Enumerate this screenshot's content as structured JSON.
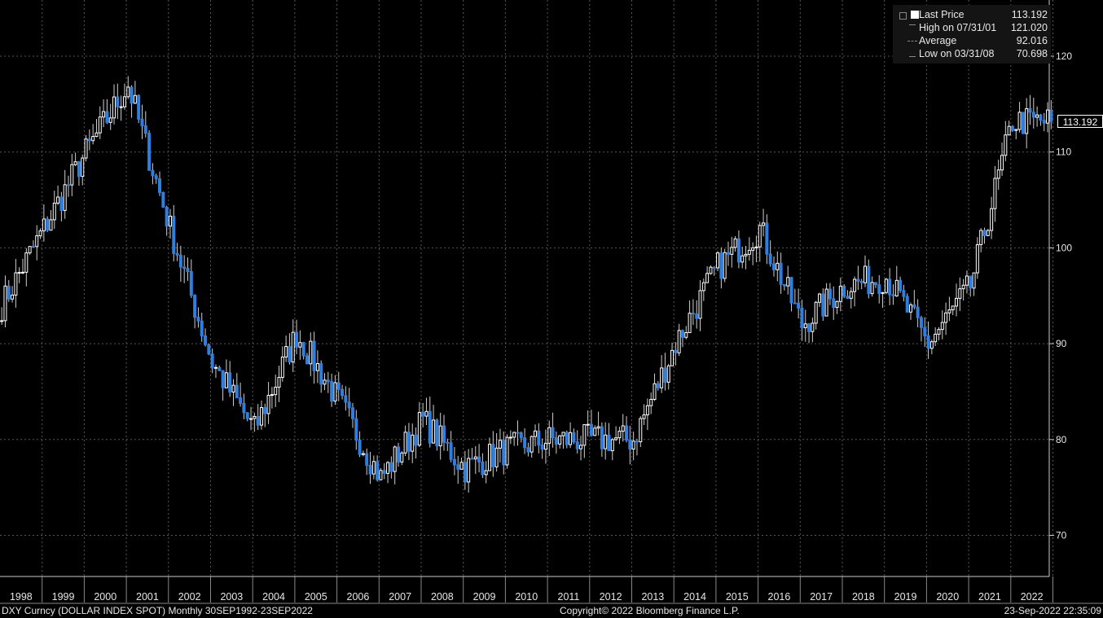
{
  "chart_data": {
    "type": "candlestick",
    "x": [
      "1998",
      "1999",
      "2000",
      "2001",
      "2002",
      "2003",
      "2004",
      "2005",
      "2006",
      "2007",
      "2008",
      "2009",
      "2010",
      "2011",
      "2012",
      "2013",
      "2014",
      "2015",
      "2016",
      "2017",
      "2018",
      "2019",
      "2020",
      "2021",
      "2022"
    ],
    "x_label": "",
    "y_ticks": [
      70,
      80,
      90,
      100,
      110,
      120
    ],
    "ylim": [
      64,
      124
    ],
    "grid": true,
    "up_color": "#ffffff",
    "down_color": "#2f7fe0",
    "approx_year_close": [
      {
        "year": "1998",
        "value": 94
      },
      {
        "year": "1999",
        "value": 102
      },
      {
        "year": "2000",
        "value": 110
      },
      {
        "year": "2001",
        "value": 117
      },
      {
        "year": "2002",
        "value": 102
      },
      {
        "year": "2003",
        "value": 88
      },
      {
        "year": "2004",
        "value": 81
      },
      {
        "year": "2005",
        "value": 91
      },
      {
        "year": "2006",
        "value": 84
      },
      {
        "year": "2007",
        "value": 76
      },
      {
        "year": "2008",
        "value": 82
      },
      {
        "year": "2009",
        "value": 77
      },
      {
        "year": "2010",
        "value": 79
      },
      {
        "year": "2011",
        "value": 80
      },
      {
        "year": "2012",
        "value": 80
      },
      {
        "year": "2013",
        "value": 80
      },
      {
        "year": "2014",
        "value": 90
      },
      {
        "year": "2015",
        "value": 98
      },
      {
        "year": "2016",
        "value": 102
      },
      {
        "year": "2017",
        "value": 92
      },
      {
        "year": "2018",
        "value": 96
      },
      {
        "year": "2019",
        "value": 97
      },
      {
        "year": "2020",
        "value": 90
      },
      {
        "year": "2021",
        "value": 96
      },
      {
        "year": "2022",
        "value": 113.192
      }
    ],
    "last_price": "113.192",
    "series_name": "DXY Curncy (DOLLAR INDEX SPOT)"
  },
  "legend": {
    "last_label": "Last Price",
    "last_value": "113.192",
    "high_label": "High on 07/31/01",
    "high_value": "121.020",
    "avg_label": "Average",
    "avg_value": "92.016",
    "low_label": "Low on 03/31/08",
    "low_value": "70.698"
  },
  "price_flag": "113.192",
  "footer": {
    "left": "DXY Curncy (DOLLAR INDEX SPOT)  Monthly 30SEP1992-23SEP2022",
    "center": "Copyright© 2022 Bloomberg Finance L.P.",
    "right": "23-Sep-2022 22:35:09"
  }
}
